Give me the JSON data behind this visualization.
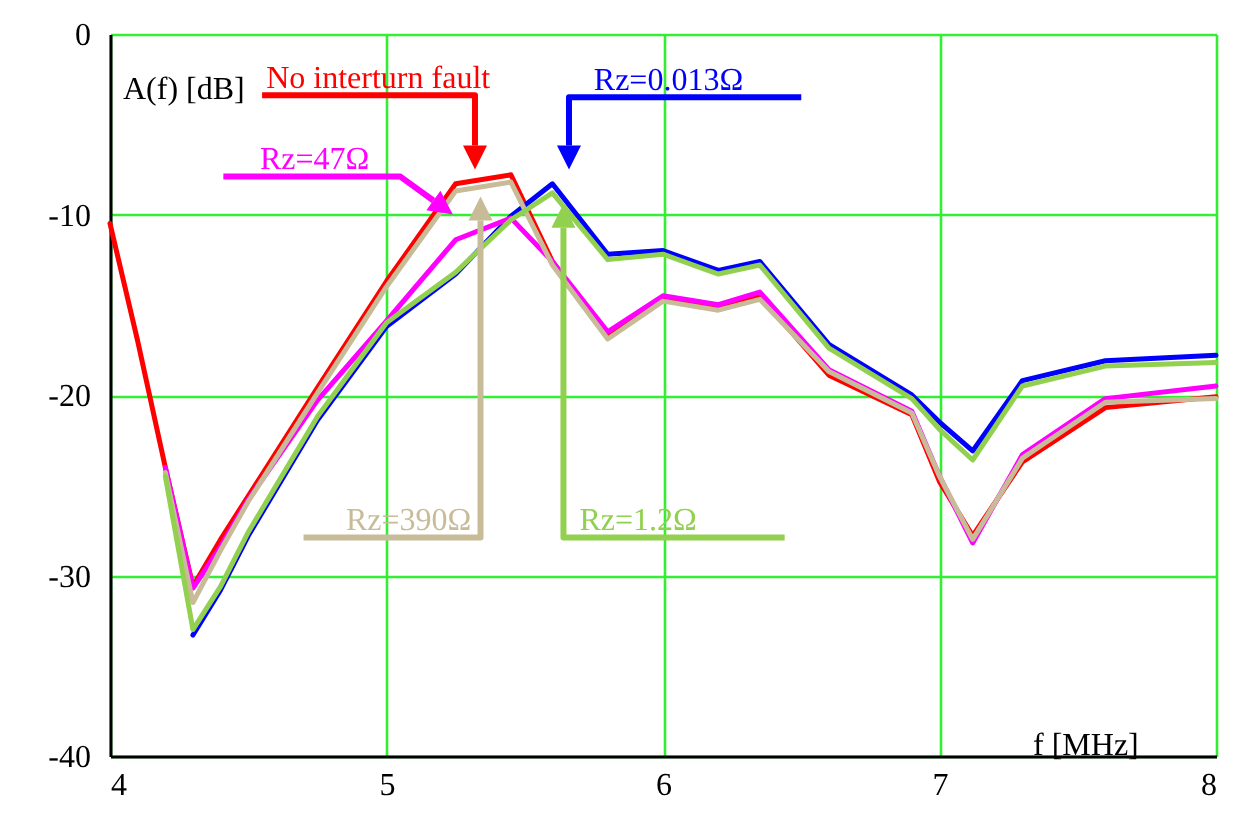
{
  "chart_data": {
    "type": "line",
    "xlabel": "f  [MHz]",
    "ylabel": "A(f)  [dB]",
    "x": [
      4,
      4.1,
      4.2,
      4.3,
      4.4,
      4.5,
      4.75,
      5,
      5.25,
      5.45,
      5.6,
      5.8,
      6,
      6.2,
      6.35,
      6.6,
      6.9,
      7,
      7.12,
      7.3,
      7.6,
      8
    ],
    "series": [
      {
        "name": "No interturn fault",
        "color": "#ff0000",
        "values": [
          -10.5,
          -17,
          -24,
          -30.6,
          -28,
          -25.6,
          -19.6,
          -13.7,
          -8.3,
          -7.8,
          -12.6,
          -16.7,
          -14.6,
          -15.2,
          -14.5,
          -18.9,
          -21.1,
          -24.8,
          -27.8,
          -23.7,
          -20.7,
          -20.1
        ]
      },
      {
        "name": "Rz=0.013Ω",
        "color": "#0000ff",
        "values": [
          null,
          null,
          null,
          -33.3,
          -30.8,
          -27.8,
          -21.4,
          -16.2,
          -13.3,
          -10.1,
          -8.3,
          -12.2,
          -12.0,
          -13.1,
          -12.6,
          -17.2,
          -20.0,
          -21.5,
          -23.1,
          -19.2,
          -18.1,
          -17.8
        ]
      },
      {
        "name": "Rz=47Ω",
        "color": "#ff00ff",
        "values": [
          null,
          null,
          -24,
          -30.7,
          -28.4,
          -25.8,
          -20.3,
          -15.9,
          -11.4,
          -10.2,
          -12.6,
          -16.5,
          -14.5,
          -15.0,
          -14.3,
          -18.6,
          -20.9,
          -24.5,
          -28.2,
          -23.3,
          -20.2,
          -19.5
        ]
      },
      {
        "name": "Rz=390Ω",
        "color": "#c8bc98",
        "values": [
          null,
          null,
          -24.3,
          -31.5,
          -28.6,
          -25.9,
          -19.9,
          -14.0,
          -8.7,
          -8.2,
          -12.8,
          -16.9,
          -14.8,
          -15.3,
          -14.7,
          -18.7,
          -21.0,
          -24.5,
          -28.0,
          -23.5,
          -20.4,
          -20.2
        ]
      },
      {
        "name": "Rz=1.2Ω",
        "color": "#92d050",
        "values": [
          null,
          null,
          -24.5,
          -33,
          -30.6,
          -27.6,
          -21.2,
          -16.0,
          -13.2,
          -10.3,
          -8.8,
          -12.5,
          -12.2,
          -13.3,
          -12.8,
          -17.4,
          -20.2,
          -21.9,
          -23.6,
          -19.5,
          -18.4,
          -18.2
        ]
      }
    ],
    "xlim": [
      4,
      8
    ],
    "xticks": [
      4,
      5,
      6,
      7,
      8
    ],
    "ylim": [
      -40,
      0
    ],
    "yticks": [
      -40,
      -30,
      -20,
      -10,
      0
    ],
    "grid": true,
    "marker": "none",
    "line_style": "solid"
  }
}
